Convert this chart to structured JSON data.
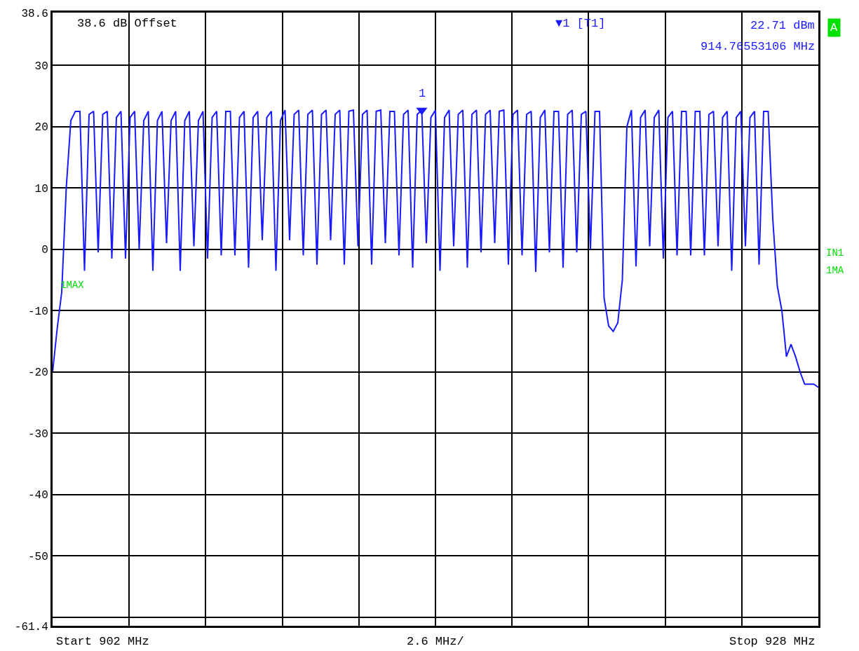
{
  "chart_data": {
    "type": "line",
    "tick_labels": "y",
    "grid": true,
    "ylim": [
      -61.4,
      38.6
    ],
    "yticks": [
      38.6,
      30,
      20,
      10,
      0,
      -10,
      -20,
      -30,
      -40,
      -50,
      {
        "value": -60,
        "label": null
      },
      -61.4
    ],
    "categories": [
      null,
      null,
      null,
      null,
      null,
      null,
      null,
      null,
      null,
      null,
      null,
      null,
      null,
      null,
      null,
      null,
      null,
      null,
      null,
      null,
      null,
      null,
      null,
      null,
      null,
      null,
      null,
      null,
      null,
      null,
      null,
      null,
      null,
      null,
      null,
      null,
      null,
      null,
      null,
      null,
      null,
      null,
      null,
      null,
      null,
      null,
      null,
      null,
      null,
      null,
      null,
      null,
      null,
      null,
      null,
      null,
      null,
      null,
      null,
      null,
      null,
      null,
      null,
      null,
      null,
      null,
      null,
      null,
      null,
      null,
      null,
      null,
      null,
      null,
      null,
      null,
      null,
      null,
      null,
      null,
      null,
      null,
      null,
      null,
      null,
      null,
      null,
      null,
      null,
      null,
      null,
      null,
      null,
      null,
      null,
      null,
      null,
      null,
      null,
      null,
      null,
      null,
      null,
      null,
      null,
      null,
      null,
      null,
      null,
      null,
      null,
      null,
      null,
      null,
      null,
      null,
      null,
      null,
      null,
      null,
      null,
      null,
      null,
      null,
      null,
      null,
      null,
      null,
      null,
      null,
      null,
      null,
      null,
      null,
      null,
      null,
      null,
      null,
      null,
      null,
      null,
      null,
      null,
      null,
      null,
      null,
      null,
      null,
      null,
      null,
      null,
      null,
      null,
      null,
      null,
      null,
      null,
      null,
      null,
      null,
      null,
      null,
      null,
      null,
      null,
      null,
      null,
      null,
      null
    ],
    "series": [
      {
        "color": "#1a1aff",
        "line_style": "solid",
        "marker": "none",
        "values": [
          -20,
          -13,
          -7,
          10,
          21,
          22.5,
          22.5,
          -3.5,
          22,
          22.5,
          -0.5,
          22,
          22.5,
          -1.5,
          21.5,
          22.5,
          -1.5,
          21.5,
          22.5,
          0,
          21,
          22.5,
          -3.5,
          21,
          22.5,
          1,
          21,
          22.5,
          -3.5,
          21,
          22.5,
          0.5,
          21,
          22.5,
          -1.5,
          21.5,
          22.5,
          -1,
          22.5,
          22.5,
          -1,
          21.5,
          22.5,
          -3,
          21.5,
          22.5,
          1.5,
          21.5,
          22.5,
          -3.5,
          21,
          22.7,
          1.5,
          22,
          22.7,
          -1,
          22,
          22.7,
          -2.5,
          22,
          22.7,
          1.5,
          22,
          22.7,
          -2.5,
          22.5,
          22.7,
          0.5,
          22,
          22.7,
          -2.5,
          22.5,
          22.7,
          1,
          22.5,
          22.5,
          -1,
          22,
          22.7,
          -3,
          22,
          22.7,
          1,
          21.5,
          22.7,
          -3.5,
          21.5,
          22.7,
          0.5,
          22,
          22.7,
          -3,
          22,
          22.7,
          -0.5,
          22,
          22.7,
          1,
          22.5,
          22.7,
          -2.5,
          22,
          22.7,
          -1,
          22,
          22.5,
          -3.7,
          21.5,
          22.7,
          -0.5,
          22.5,
          22.5,
          -3,
          22,
          22.7,
          -0.5,
          22,
          22.5,
          0,
          22.5,
          22.5,
          -8,
          -12.5,
          -13.4,
          -12,
          -5,
          20,
          22.7,
          -2.8,
          21.5,
          22.7,
          0.5,
          21.5,
          22.7,
          -1.5,
          21.5,
          22.5,
          -1,
          22.5,
          22.5,
          -1,
          22.5,
          22.5,
          -1,
          22,
          22.5,
          0.5,
          21.5,
          22.5,
          -3.5,
          21.5,
          22.5,
          0.5,
          21.5,
          22.5,
          -2.5,
          22.5,
          22.5,
          5,
          -6,
          -10,
          -17.5,
          -15.5,
          -17.5,
          -20,
          -22,
          -22,
          -22,
          -22.5
        ]
      },
      {
        "type": "scatter",
        "color": "#1a1aff",
        "marker": "triangle",
        "values": [
          null,
          null,
          null,
          null,
          null,
          null,
          null,
          null,
          null,
          null,
          null,
          null,
          null,
          null,
          null,
          null,
          null,
          null,
          null,
          null,
          null,
          null,
          null,
          null,
          null,
          null,
          null,
          null,
          null,
          null,
          null,
          null,
          null,
          null,
          null,
          null,
          null,
          null,
          null,
          null,
          null,
          null,
          null,
          null,
          null,
          null,
          null,
          null,
          null,
          null,
          null,
          null,
          null,
          null,
          null,
          null,
          null,
          null,
          null,
          null,
          null,
          null,
          null,
          null,
          null,
          null,
          null,
          null,
          null,
          null,
          null,
          null,
          null,
          null,
          null,
          null,
          null,
          null,
          null,
          null,
          null,
          22.7,
          null,
          null,
          null,
          null,
          null,
          null,
          null,
          null,
          null,
          null,
          null,
          null,
          null,
          null,
          null,
          null,
          null,
          null,
          null,
          null,
          null,
          null,
          null,
          null,
          null,
          null,
          null,
          null,
          null,
          null,
          null,
          null,
          null,
          null,
          null,
          null,
          null,
          null,
          null,
          null,
          null,
          null,
          null,
          null,
          null,
          null,
          null,
          null,
          null,
          null,
          null,
          null,
          null,
          null,
          null,
          null,
          null,
          null,
          null,
          null,
          null,
          null,
          null,
          null,
          null,
          null,
          null,
          null,
          null,
          null,
          null,
          null,
          null,
          null,
          null,
          null,
          null,
          null,
          null,
          null,
          null,
          null,
          null,
          null,
          null,
          null,
          null
        ]
      }
    ],
    "annotations": [
      "38.6 dB Offset",
      "▼1 [T1]",
      "22.71 dBm",
      "914.76553106 MHz",
      "A",
      "1MAX",
      "IN1",
      "1MA",
      "Start 902 MHz",
      "2.6 MHz/",
      "Stop 928 MHz",
      "1"
    ]
  }
}
